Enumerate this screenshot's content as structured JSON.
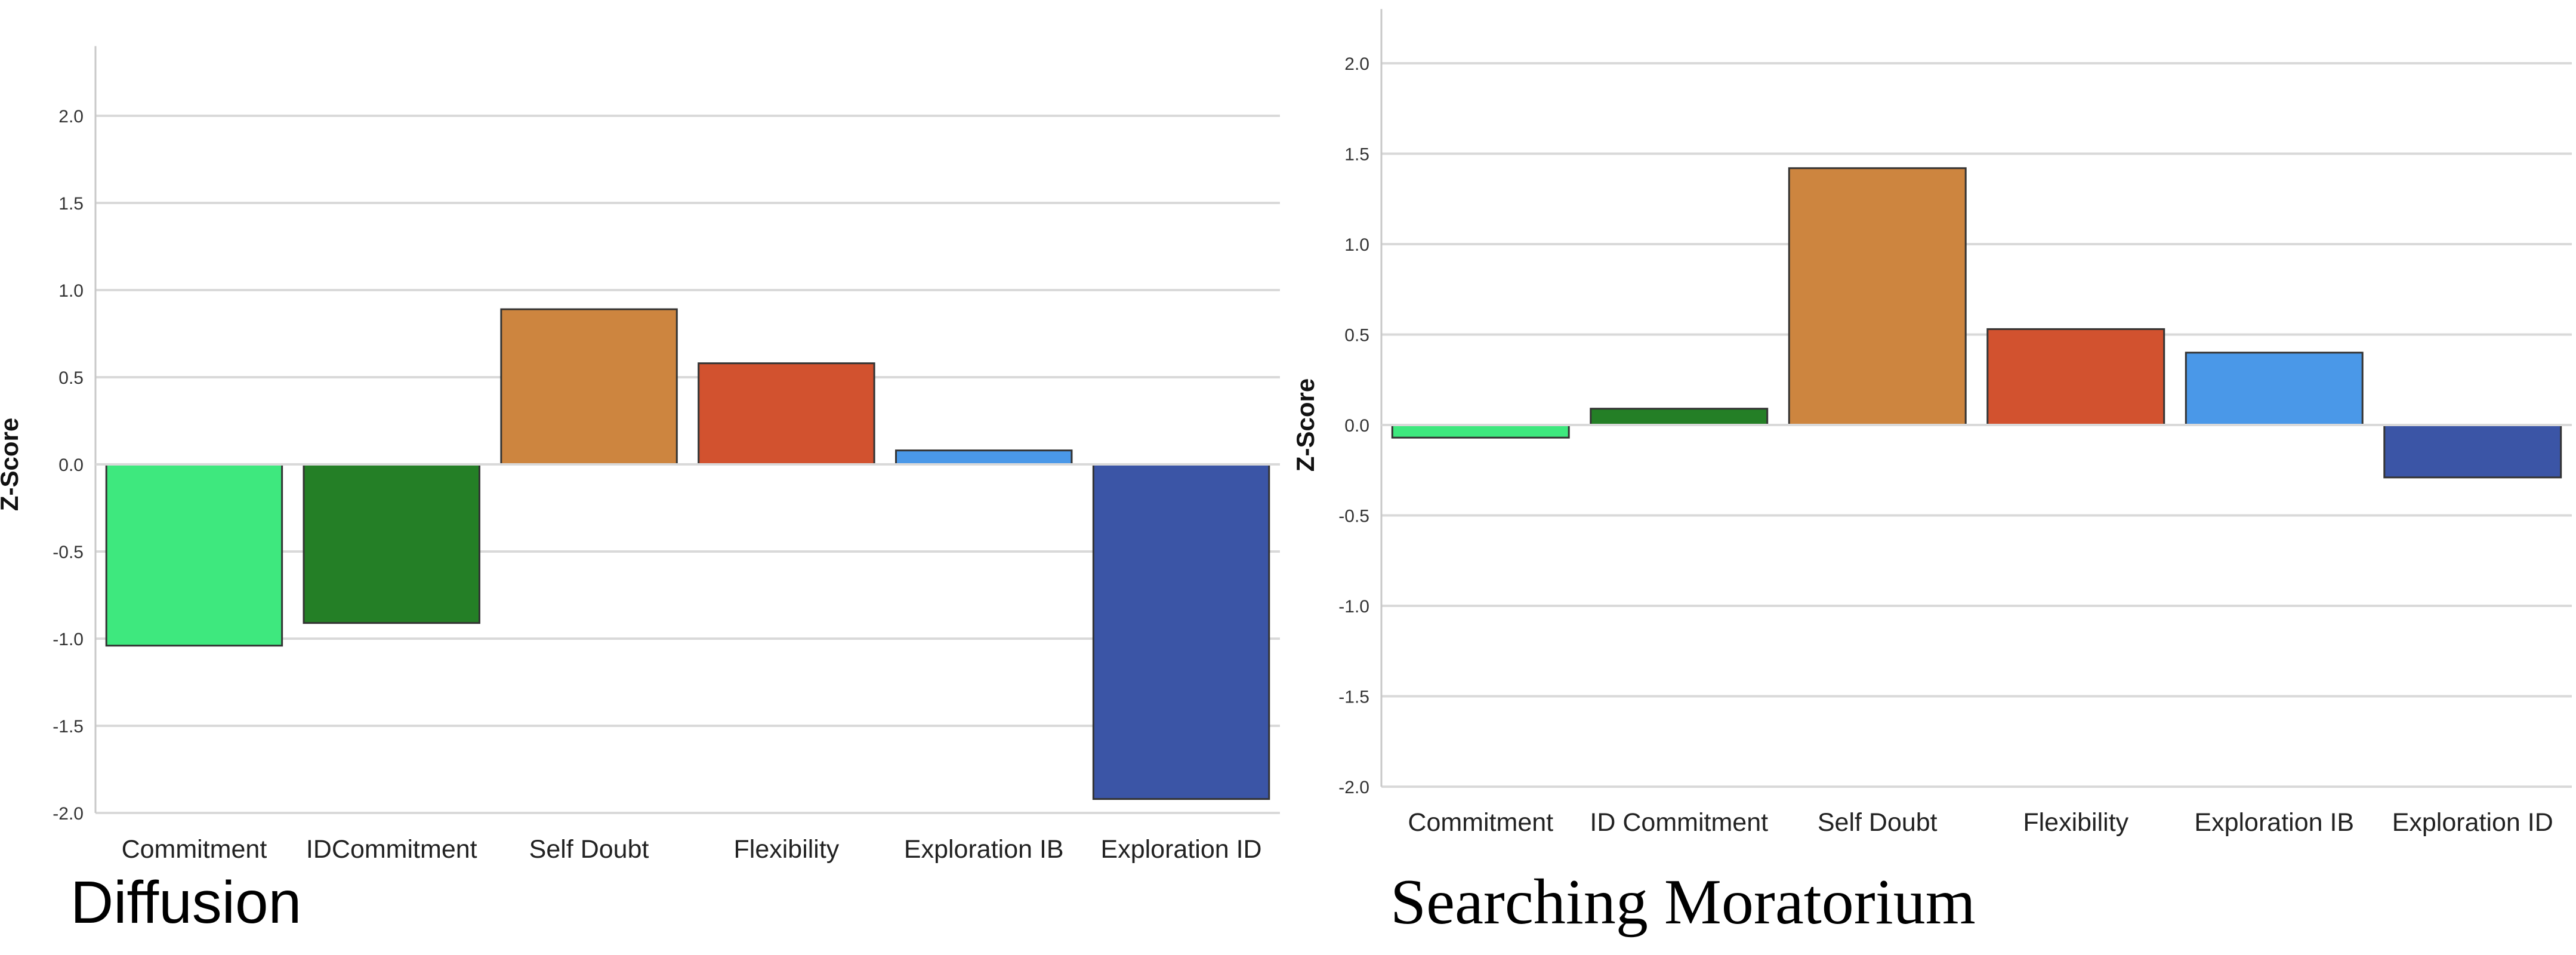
{
  "chart_data": [
    {
      "type": "bar",
      "title": "Diffusion",
      "ylabel": "Z-Score",
      "xlabel": "",
      "ylim": [
        -2.0,
        2.4
      ],
      "yticks": [
        "2.0",
        "1.5",
        "1.0",
        "0.5",
        "0.0",
        "-0.5",
        "-1.0",
        "-1.5",
        "-2.0"
      ],
      "categories": [
        "Commitment",
        "IDCommitment",
        "Self Doubt",
        "Flexibility",
        "Exploration IB",
        "Exploration ID"
      ],
      "values": [
        -1.04,
        -0.91,
        0.89,
        0.58,
        0.08,
        -1.92
      ],
      "colors": [
        "#3ee87e",
        "#247f26",
        "#cd853f",
        "#d2522f",
        "#4a98e8",
        "#3b55a6"
      ],
      "grid": true
    },
    {
      "type": "bar",
      "title": "Searching Moratorium",
      "ylabel": "Z-Score",
      "xlabel": "",
      "ylim": [
        -2.0,
        2.3
      ],
      "yticks": [
        "2.0",
        "1.5",
        "1.0",
        "0.5",
        "0.0",
        "-0.5",
        "-1.0",
        "-1.5",
        "-2.0"
      ],
      "categories": [
        "Commitment",
        "ID Commitment",
        "Self Doubt",
        "Flexibility",
        "Exploration IB",
        "Exploration ID"
      ],
      "values": [
        -0.07,
        0.09,
        1.42,
        0.53,
        0.4,
        -0.29
      ],
      "colors": [
        "#3ee87e",
        "#247f26",
        "#cd853f",
        "#d2522f",
        "#4a98e8",
        "#3b55a6"
      ],
      "grid": true
    }
  ]
}
